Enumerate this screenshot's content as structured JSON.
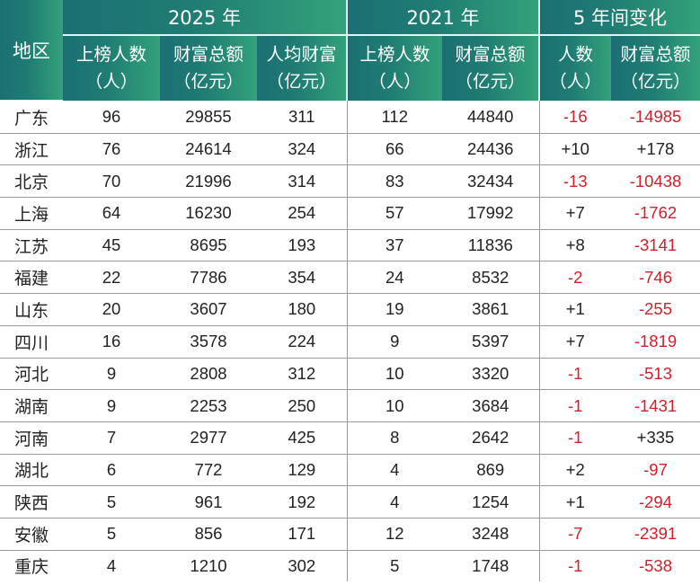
{
  "header": {
    "region": "地区",
    "group_2025": "2025 年",
    "group_2021": "2021 年",
    "group_change": "5 年间变化",
    "col_2025_count": [
      "上榜人数",
      "（人）"
    ],
    "col_2025_wealth": [
      "财富总额",
      "（亿元）"
    ],
    "col_2025_avg": [
      "人均财富",
      "（亿元）"
    ],
    "col_2021_count": [
      "上榜人数",
      "（人）"
    ],
    "col_2021_wealth": [
      "财富总额",
      "（亿元）"
    ],
    "col_change_count": [
      "人数",
      "（人）"
    ],
    "col_change_wealth": [
      "财富总额",
      "（亿元）"
    ]
  },
  "rows": [
    {
      "region": "广东",
      "count_2025": "96",
      "wealth_2025": "29855",
      "avg_2025": "311",
      "count_2021": "112",
      "wealth_2021": "44840",
      "change_count": "-16",
      "change_wealth": "-14985"
    },
    {
      "region": "浙江",
      "count_2025": "76",
      "wealth_2025": "24614",
      "avg_2025": "324",
      "count_2021": "66",
      "wealth_2021": "24436",
      "change_count": "+10",
      "change_wealth": "+178"
    },
    {
      "region": "北京",
      "count_2025": "70",
      "wealth_2025": "21996",
      "avg_2025": "314",
      "count_2021": "83",
      "wealth_2021": "32434",
      "change_count": "-13",
      "change_wealth": "-10438"
    },
    {
      "region": "上海",
      "count_2025": "64",
      "wealth_2025": "16230",
      "avg_2025": "254",
      "count_2021": "57",
      "wealth_2021": "17992",
      "change_count": "+7",
      "change_wealth": "-1762"
    },
    {
      "region": "江苏",
      "count_2025": "45",
      "wealth_2025": "8695",
      "avg_2025": "193",
      "count_2021": "37",
      "wealth_2021": "11836",
      "change_count": "+8",
      "change_wealth": "-3141"
    },
    {
      "region": "福建",
      "count_2025": "22",
      "wealth_2025": "7786",
      "avg_2025": "354",
      "count_2021": "24",
      "wealth_2021": "8532",
      "change_count": "-2",
      "change_wealth": "-746"
    },
    {
      "region": "山东",
      "count_2025": "20",
      "wealth_2025": "3607",
      "avg_2025": "180",
      "count_2021": "19",
      "wealth_2021": "3861",
      "change_count": "+1",
      "change_wealth": "-255"
    },
    {
      "region": "四川",
      "count_2025": "16",
      "wealth_2025": "3578",
      "avg_2025": "224",
      "count_2021": "9",
      "wealth_2021": "5397",
      "change_count": "+7",
      "change_wealth": "-1819"
    },
    {
      "region": "河北",
      "count_2025": "9",
      "wealth_2025": "2808",
      "avg_2025": "312",
      "count_2021": "10",
      "wealth_2021": "3320",
      "change_count": "-1",
      "change_wealth": "-513"
    },
    {
      "region": "湖南",
      "count_2025": "9",
      "wealth_2025": "2253",
      "avg_2025": "250",
      "count_2021": "10",
      "wealth_2021": "3684",
      "change_count": "-1",
      "change_wealth": "-1431"
    },
    {
      "region": "河南",
      "count_2025": "7",
      "wealth_2025": "2977",
      "avg_2025": "425",
      "count_2021": "8",
      "wealth_2021": "2642",
      "change_count": "-1",
      "change_wealth": "+335"
    },
    {
      "region": "湖北",
      "count_2025": "6",
      "wealth_2025": "772",
      "avg_2025": "129",
      "count_2021": "4",
      "wealth_2021": "869",
      "change_count": "+2",
      "change_wealth": "-97"
    },
    {
      "region": "陕西",
      "count_2025": "5",
      "wealth_2025": "961",
      "avg_2025": "192",
      "count_2021": "4",
      "wealth_2021": "1254",
      "change_count": "+1",
      "change_wealth": "-294"
    },
    {
      "region": "安徽",
      "count_2025": "5",
      "wealth_2025": "856",
      "avg_2025": "171",
      "count_2021": "12",
      "wealth_2021": "3248",
      "change_count": "-7",
      "change_wealth": "-2391"
    },
    {
      "region": "重庆",
      "count_2025": "4",
      "wealth_2025": "1210",
      "avg_2025": "302",
      "count_2021": "5",
      "wealth_2021": "1748",
      "change_count": "-1",
      "change_wealth": "-538"
    }
  ],
  "colors": {
    "header_start": "#1b6f73",
    "header_end": "#33a27a",
    "negative": "#d0202b",
    "text": "#222222"
  }
}
